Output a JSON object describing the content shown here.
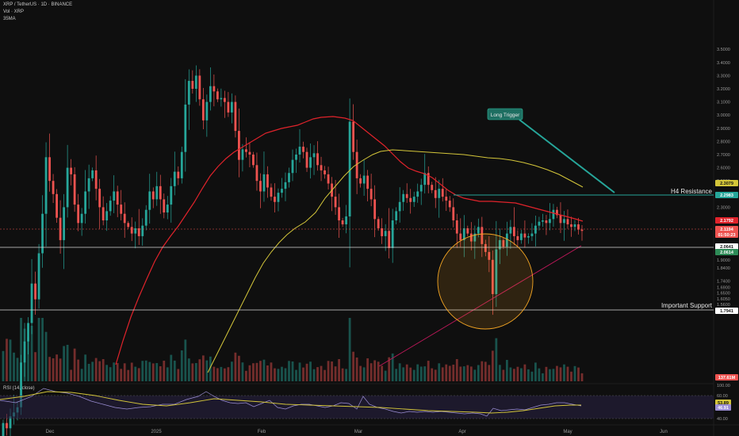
{
  "header": {
    "symbol_line": "XRP / TetherUS · 1D · BINANCE",
    "vol_line": "Vol · XRP",
    "ma_line": "35MA"
  },
  "colors": {
    "background": "#0f0f0f",
    "up_candle": "#26a69a",
    "down_candle": "#ef5350",
    "ma_red": "#e0232b",
    "ma_yellow": "#d4c63a",
    "resistance_line": "#26a69a",
    "support_line": "#d9d9d9",
    "trendline": "#c2185b",
    "circle_fill": "#f5a623",
    "rsi_line": "#9c8fd6",
    "rsi_ma": "#d4c63a"
  },
  "chart_data": {
    "type": "candlestick",
    "symbol": "XRP / TetherUS",
    "timeframe": "1D",
    "exchange": "BINANCE",
    "y_axis_ticks": [
      "3.5000",
      "3.4000",
      "3.3000",
      "3.2000",
      "3.1000",
      "3.0000",
      "2.9000",
      "2.8000",
      "2.7000",
      "2.6000",
      "2.5000",
      "2.4000",
      "2.3000",
      "2.2000",
      "2.1000",
      "2.0000",
      "1.9600",
      "1.9000",
      "1.8400",
      "1.7400",
      "1.6900",
      "1.6500",
      "1.6050",
      "1.5600"
    ],
    "x_axis_ticks": [
      "Dec",
      "2025",
      "Feb",
      "Mar",
      "Apr",
      "May",
      "Jun"
    ],
    "price_labels": [
      {
        "text": "2.3079",
        "kind": "yellow-ma"
      },
      {
        "text": "2.2983",
        "kind": "resistance"
      },
      {
        "text": "2.1792",
        "kind": "red-ma"
      },
      {
        "text": "2.1194",
        "kind": "price"
      },
      {
        "text": "01:50:23",
        "kind": "price"
      },
      {
        "text": "2.0641",
        "kind": "white"
      },
      {
        "text": "2.0614",
        "kind": "green"
      },
      {
        "text": "1.7941",
        "kind": "support"
      },
      {
        "text": "137.61M",
        "kind": "volume"
      }
    ],
    "resistance_level": 2.2983,
    "support_levels": [
      2.0641,
      1.7941
    ],
    "last_price": 2.1194,
    "annotations": {
      "long_trigger": "Long Trigger",
      "h4_resistance": "H4 Resistance",
      "important_support": "Important Support"
    },
    "rsi": {
      "label": "RSI (14, close)",
      "ticks": [
        "100.00",
        "60.00",
        "40.00"
      ],
      "value_labels": [
        "53.89",
        "46.91"
      ]
    },
    "candles": [
      [
        0.53,
        0.66
      ],
      [
        0.66,
        0.62
      ],
      [
        0.62,
        0.71
      ],
      [
        0.71,
        0.74
      ],
      [
        0.74,
        0.78
      ],
      [
        0.78,
        1.12
      ],
      [
        1.12,
        1.28
      ],
      [
        1.28,
        1.42
      ],
      [
        1.42,
        1.72
      ],
      [
        1.72,
        1.6
      ],
      [
        1.6,
        1.95
      ],
      [
        1.95,
        2.25
      ],
      [
        2.25,
        2.68
      ],
      [
        2.68,
        2.5
      ],
      [
        2.5,
        2.4
      ],
      [
        2.4,
        2.22
      ],
      [
        2.22,
        2.05
      ],
      [
        2.05,
        2.3
      ],
      [
        2.3,
        2.6
      ],
      [
        2.6,
        2.55
      ],
      [
        2.55,
        2.32
      ],
      [
        2.32,
        2.18
      ],
      [
        2.18,
        2.25
      ],
      [
        2.25,
        2.42
      ],
      [
        2.42,
        2.52
      ],
      [
        2.52,
        2.58
      ],
      [
        2.58,
        2.44
      ],
      [
        2.44,
        2.3
      ],
      [
        2.3,
        2.2
      ],
      [
        2.2,
        2.27
      ],
      [
        2.27,
        2.35
      ],
      [
        2.35,
        2.42
      ],
      [
        2.42,
        2.32
      ],
      [
        2.32,
        2.25
      ],
      [
        2.25,
        2.18
      ],
      [
        2.18,
        2.15
      ],
      [
        2.15,
        2.1
      ],
      [
        2.1,
        2.14
      ],
      [
        2.14,
        2.08
      ],
      [
        2.08,
        2.16
      ],
      [
        2.16,
        2.28
      ],
      [
        2.28,
        2.42
      ],
      [
        2.42,
        2.36
      ],
      [
        2.36,
        2.46
      ],
      [
        2.46,
        2.36
      ],
      [
        2.36,
        2.26
      ],
      [
        2.26,
        2.32
      ],
      [
        2.32,
        2.46
      ],
      [
        2.46,
        2.57
      ],
      [
        2.57,
        2.52
      ],
      [
        2.52,
        2.72
      ],
      [
        2.72,
        3.08
      ],
      [
        3.08,
        3.26
      ],
      [
        3.26,
        3.2
      ],
      [
        3.2,
        3.3
      ],
      [
        3.3,
        3.12
      ],
      [
        3.12,
        2.96
      ],
      [
        2.96,
        3.1
      ],
      [
        3.1,
        3.22
      ],
      [
        3.22,
        3.18
      ],
      [
        3.18,
        3.12
      ],
      [
        3.12,
        3.13
      ],
      [
        3.13,
        3.1
      ],
      [
        3.1,
        3.02
      ],
      [
        3.02,
        3.1
      ],
      [
        3.1,
        2.88
      ],
      [
        2.88,
        2.66
      ],
      [
        2.66,
        2.74
      ],
      [
        2.74,
        2.72
      ],
      [
        2.72,
        2.7
      ],
      [
        2.7,
        2.62
      ],
      [
        2.62,
        2.5
      ],
      [
        2.5,
        2.42
      ],
      [
        2.42,
        2.55
      ],
      [
        2.55,
        2.45
      ],
      [
        2.45,
        2.38
      ],
      [
        2.38,
        2.34
      ],
      [
        2.34,
        2.41
      ],
      [
        2.41,
        2.44
      ],
      [
        2.44,
        2.49
      ],
      [
        2.49,
        2.56
      ],
      [
        2.56,
        2.66
      ],
      [
        2.66,
        2.7
      ],
      [
        2.7,
        2.76
      ],
      [
        2.76,
        2.72
      ],
      [
        2.72,
        2.6
      ],
      [
        2.6,
        2.68
      ],
      [
        2.68,
        2.71
      ],
      [
        2.71,
        2.62
      ],
      [
        2.62,
        2.58
      ],
      [
        2.58,
        2.55
      ],
      [
        2.55,
        2.48
      ],
      [
        2.48,
        2.38
      ],
      [
        2.38,
        2.3
      ],
      [
        2.3,
        2.2
      ],
      [
        2.2,
        2.17
      ],
      [
        2.17,
        2.23
      ],
      [
        2.23,
        2.95
      ],
      [
        2.95,
        2.72
      ],
      [
        2.72,
        2.52
      ],
      [
        2.52,
        2.48
      ],
      [
        2.48,
        2.54
      ],
      [
        2.54,
        2.44
      ],
      [
        2.44,
        2.36
      ],
      [
        2.36,
        2.21
      ],
      [
        2.21,
        2.14
      ],
      [
        2.14,
        2.08
      ],
      [
        2.08,
        2.12
      ],
      [
        2.12,
        1.99
      ],
      [
        1.99,
        2.2
      ],
      [
        2.2,
        2.27
      ],
      [
        2.27,
        2.34
      ],
      [
        2.34,
        2.4
      ],
      [
        2.4,
        2.37
      ],
      [
        2.37,
        2.34
      ],
      [
        2.34,
        2.38
      ],
      [
        2.38,
        2.42
      ],
      [
        2.42,
        2.47
      ],
      [
        2.47,
        2.56
      ],
      [
        2.56,
        2.47
      ],
      [
        2.47,
        2.43
      ],
      [
        2.43,
        2.37
      ],
      [
        2.37,
        2.44
      ],
      [
        2.44,
        2.38
      ],
      [
        2.38,
        2.35
      ],
      [
        2.35,
        2.3
      ],
      [
        2.3,
        2.2
      ],
      [
        2.2,
        2.1
      ],
      [
        2.1,
        2.05
      ],
      [
        2.05,
        2.14
      ],
      [
        2.14,
        2.1
      ],
      [
        2.1,
        2.04
      ],
      [
        2.04,
        2.1
      ],
      [
        2.1,
        2.15
      ],
      [
        2.15,
        2.02
      ],
      [
        2.02,
        1.96
      ],
      [
        1.96,
        1.9
      ],
      [
        1.9,
        1.64
      ],
      [
        1.64,
        1.98
      ],
      [
        1.98,
        2.05
      ],
      [
        2.05,
        2.0
      ],
      [
        2.0,
        2.1
      ],
      [
        2.1,
        2.15
      ],
      [
        2.15,
        2.08
      ],
      [
        2.08,
        2.05
      ],
      [
        2.05,
        2.1
      ],
      [
        2.1,
        2.07
      ],
      [
        2.07,
        2.08
      ],
      [
        2.08,
        2.1
      ],
      [
        2.1,
        2.16
      ],
      [
        2.16,
        2.19
      ],
      [
        2.19,
        2.2
      ],
      [
        2.2,
        2.18
      ],
      [
        2.18,
        2.21
      ],
      [
        2.21,
        2.28
      ],
      [
        2.28,
        2.24
      ],
      [
        2.24,
        2.18
      ],
      [
        2.18,
        2.21
      ],
      [
        2.21,
        2.17
      ],
      [
        2.17,
        2.15
      ],
      [
        2.15,
        2.17
      ],
      [
        2.17,
        2.13
      ],
      [
        2.13,
        2.12
      ]
    ]
  }
}
